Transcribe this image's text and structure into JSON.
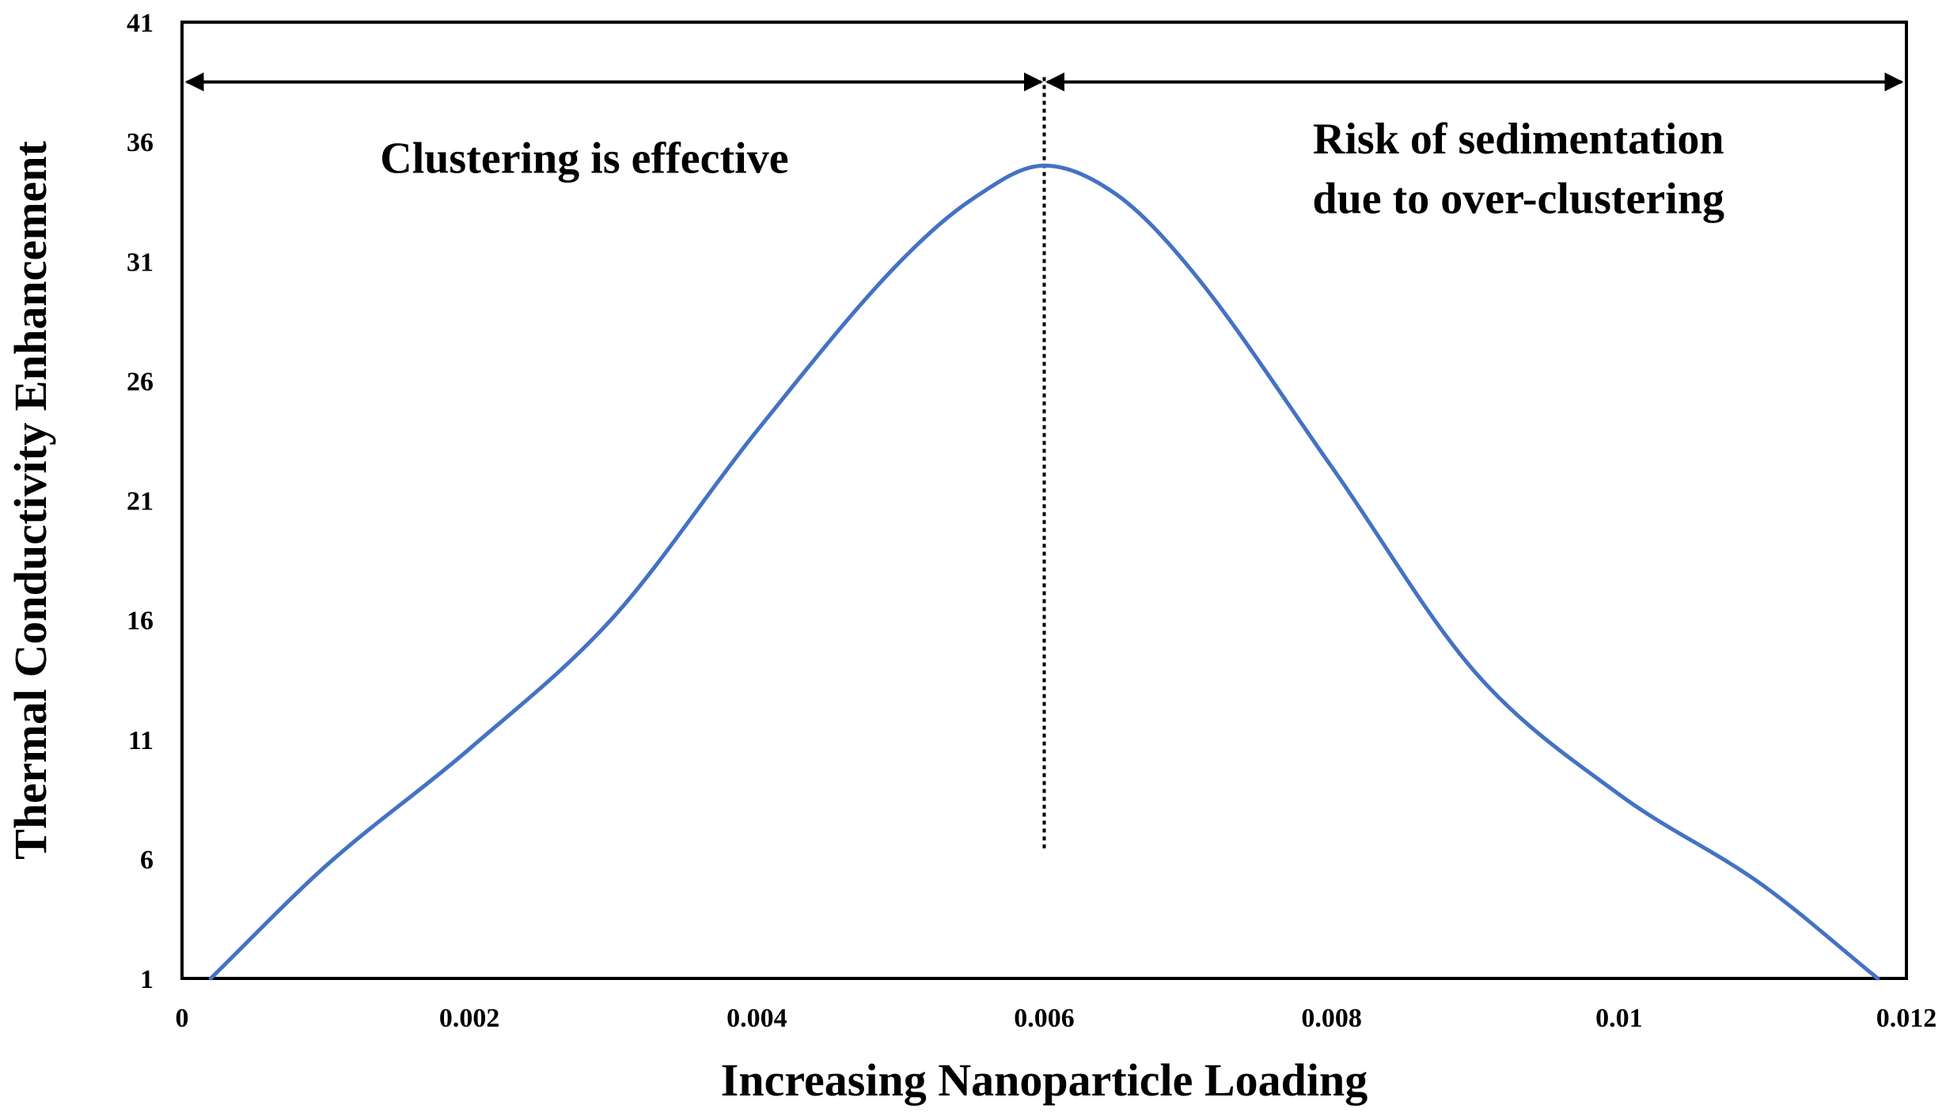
{
  "chart_data": {
    "type": "line",
    "title": "",
    "xlabel": "Increasing Nanoparticle Loading",
    "ylabel": "Thermal Conductivity Enhancement",
    "xlim": [
      0,
      0.012
    ],
    "ylim": [
      1,
      41
    ],
    "x_ticks": [
      "0",
      "0.002",
      "0.004",
      "0.006",
      "0.008",
      "0.01",
      "0.012"
    ],
    "y_ticks": [
      "1",
      "6",
      "11",
      "16",
      "21",
      "26",
      "31",
      "36",
      "41"
    ],
    "grid": false,
    "legend": "none",
    "line_color": "#4472C4",
    "series": [
      {
        "name": "Thermal Conductivity Enhancement",
        "x": [
          0.0002,
          0.001,
          0.002,
          0.003,
          0.004,
          0.005,
          0.0055,
          0.006,
          0.0065,
          0.007,
          0.008,
          0.009,
          0.01,
          0.011,
          0.0118
        ],
        "y": [
          1,
          5.7,
          10.6,
          16.1,
          23.9,
          31.0,
          33.6,
          35.0,
          33.8,
          30.8,
          22.4,
          13.8,
          8.7,
          4.9,
          1
        ]
      }
    ],
    "divider": {
      "x": 0.006,
      "y_from": 6.4,
      "y_to": 38.7,
      "style": "dotted"
    },
    "arrows": [
      {
        "from_x": 0,
        "to_x": 0.006,
        "y": 38.5
      },
      {
        "from_x": 0.006,
        "to_x": 0.012,
        "y": 38.5
      }
    ],
    "annotations": [
      {
        "text": "Clustering is effective",
        "x": 0.0028,
        "y": 35.3
      },
      {
        "text": "Risk of sedimentation",
        "x": 0.0093,
        "y": 36.1
      },
      {
        "text": "due to over-clustering",
        "x": 0.0093,
        "y": 33.6
      }
    ]
  }
}
